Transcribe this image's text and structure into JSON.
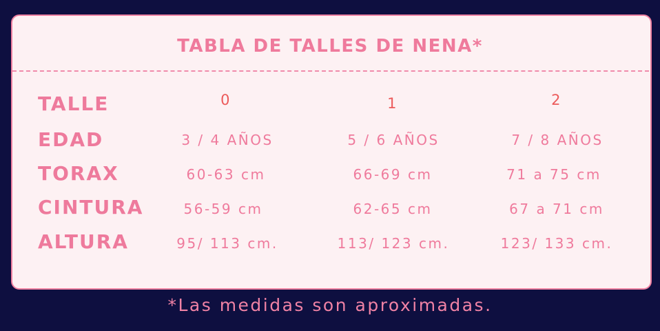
{
  "title": "TABLA DE TALLES DE NENA*",
  "rows": [
    {
      "label": "TALLE",
      "values": [
        "0",
        "1",
        "2"
      ]
    },
    {
      "label": "EDAD",
      "values": [
        "3 / 4 AÑOS",
        "5 / 6 AÑOS",
        "7 / 8 AÑOS"
      ]
    },
    {
      "label": "TORAX",
      "values": [
        "60-63 cm",
        "66-69 cm",
        "71 a 75 cm"
      ]
    },
    {
      "label": "CINTURA",
      "values": [
        "56-59 cm",
        "62-65 cm",
        "67 a 71 cm"
      ]
    },
    {
      "label": "ALTURA",
      "values": [
        "95/ 113 cm.",
        "113/ 123 cm.",
        "123/ 133 cm."
      ]
    }
  ],
  "footnote": "*Las medidas son aproximadas.",
  "colors": {
    "background": "#0e0f40",
    "card": "#fdf1f3",
    "accent": "#ef7a9c",
    "size_numbers": "#ec5a5a"
  }
}
